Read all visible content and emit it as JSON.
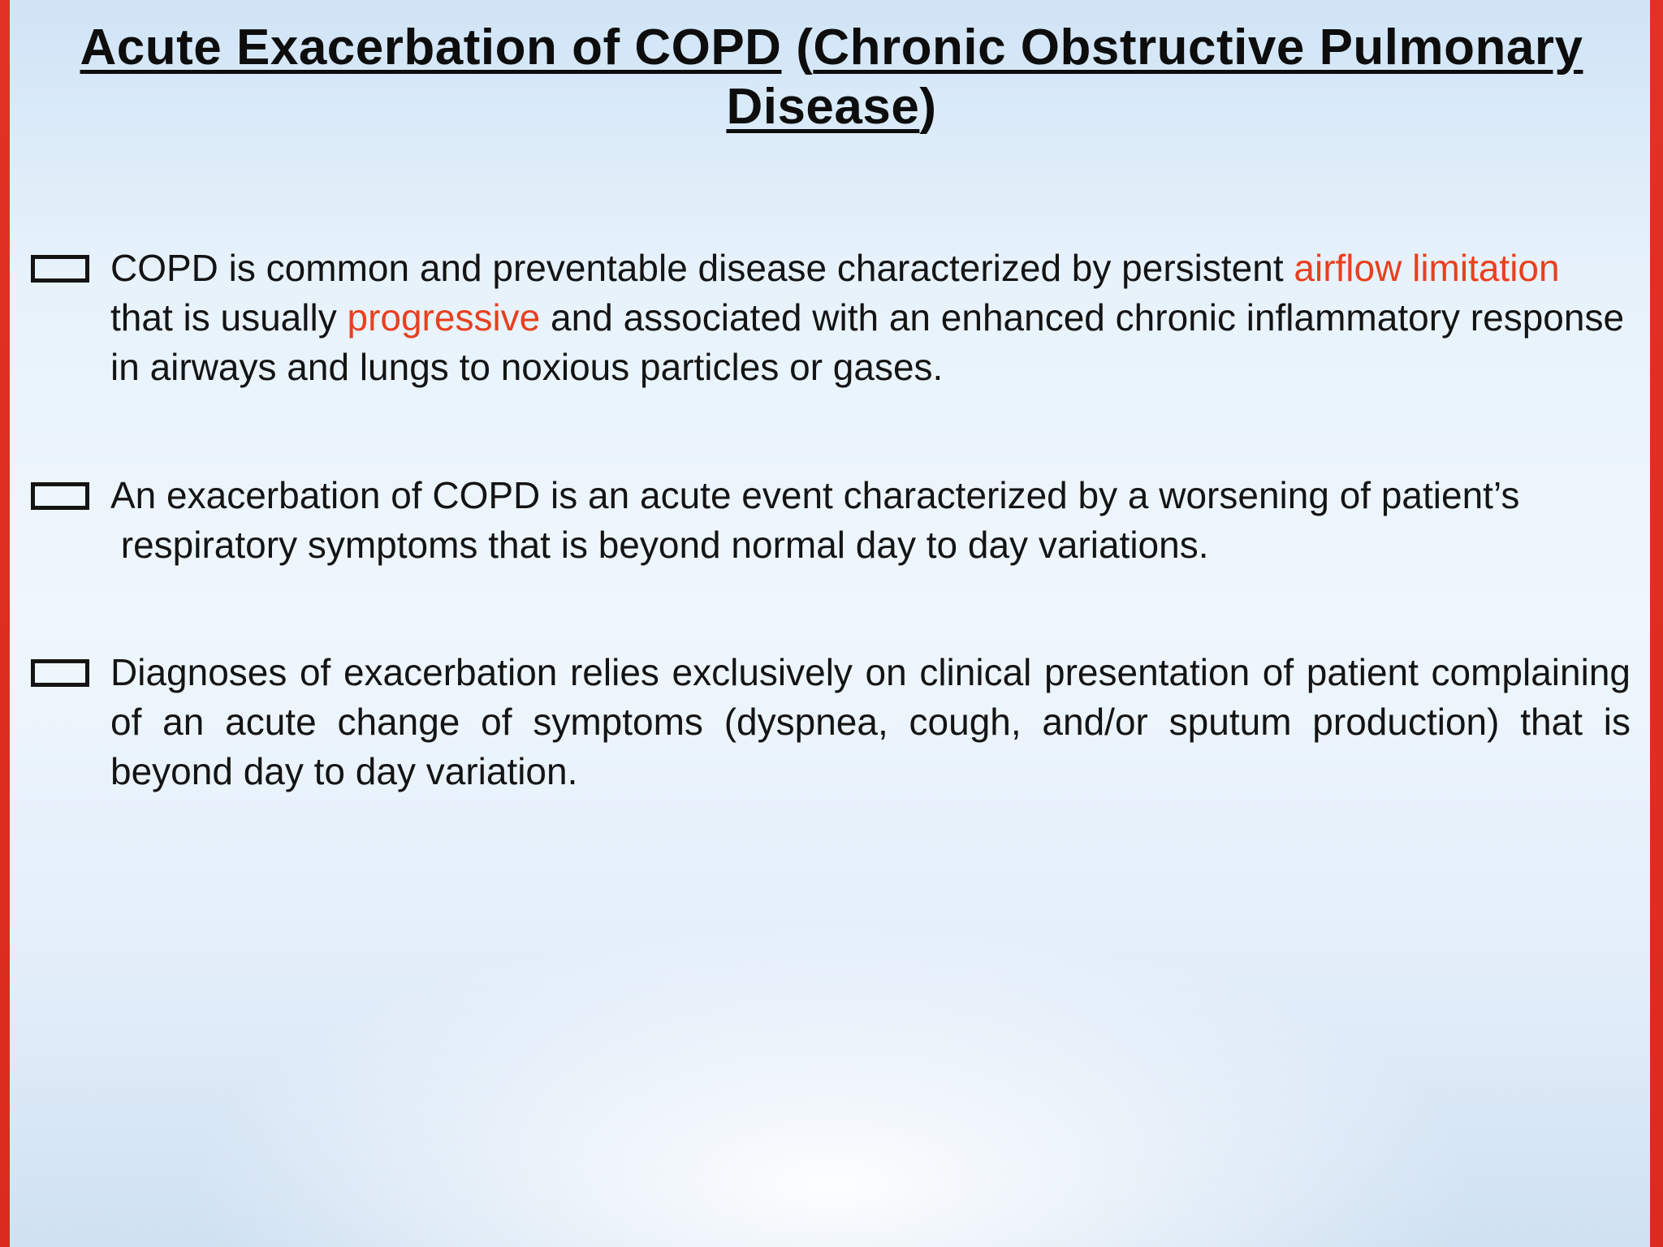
{
  "slide": {
    "accent_color": "#e8401f",
    "title_runs": [
      {
        "t": "Acute Exacerbation of COPD",
        "u": true
      },
      {
        "t": " ("
      },
      {
        "t": "Chronic Obstructive Pulmonary Disease",
        "u": true
      },
      {
        "t": ")"
      }
    ],
    "bullets": [
      {
        "runs": [
          {
            "t": " COPD is common and preventable disease characterized by persistent "
          },
          {
            "t": "airflow limitation",
            "c": "#e8401f"
          },
          {
            "t": " that is usually "
          },
          {
            "t": "progressive",
            "c": "#e8401f"
          },
          {
            "t": " and associated with an enhanced chronic inflammatory response in airways and lungs to noxious particles or gases."
          }
        ]
      },
      {
        "runs": [
          {
            "t": " An exacerbation of COPD is an acute event characterized by a worsening of patient’s  respiratory symptoms that is beyond normal day to day variations."
          }
        ]
      },
      {
        "runs": [
          {
            "t": " Diagnoses of exacerbation relies exclusively on clinical presentation of patient complaining of an acute change of symptoms (dyspnea, cough, and/or sputum production) that is beyond day to day variation."
          }
        ]
      }
    ]
  }
}
